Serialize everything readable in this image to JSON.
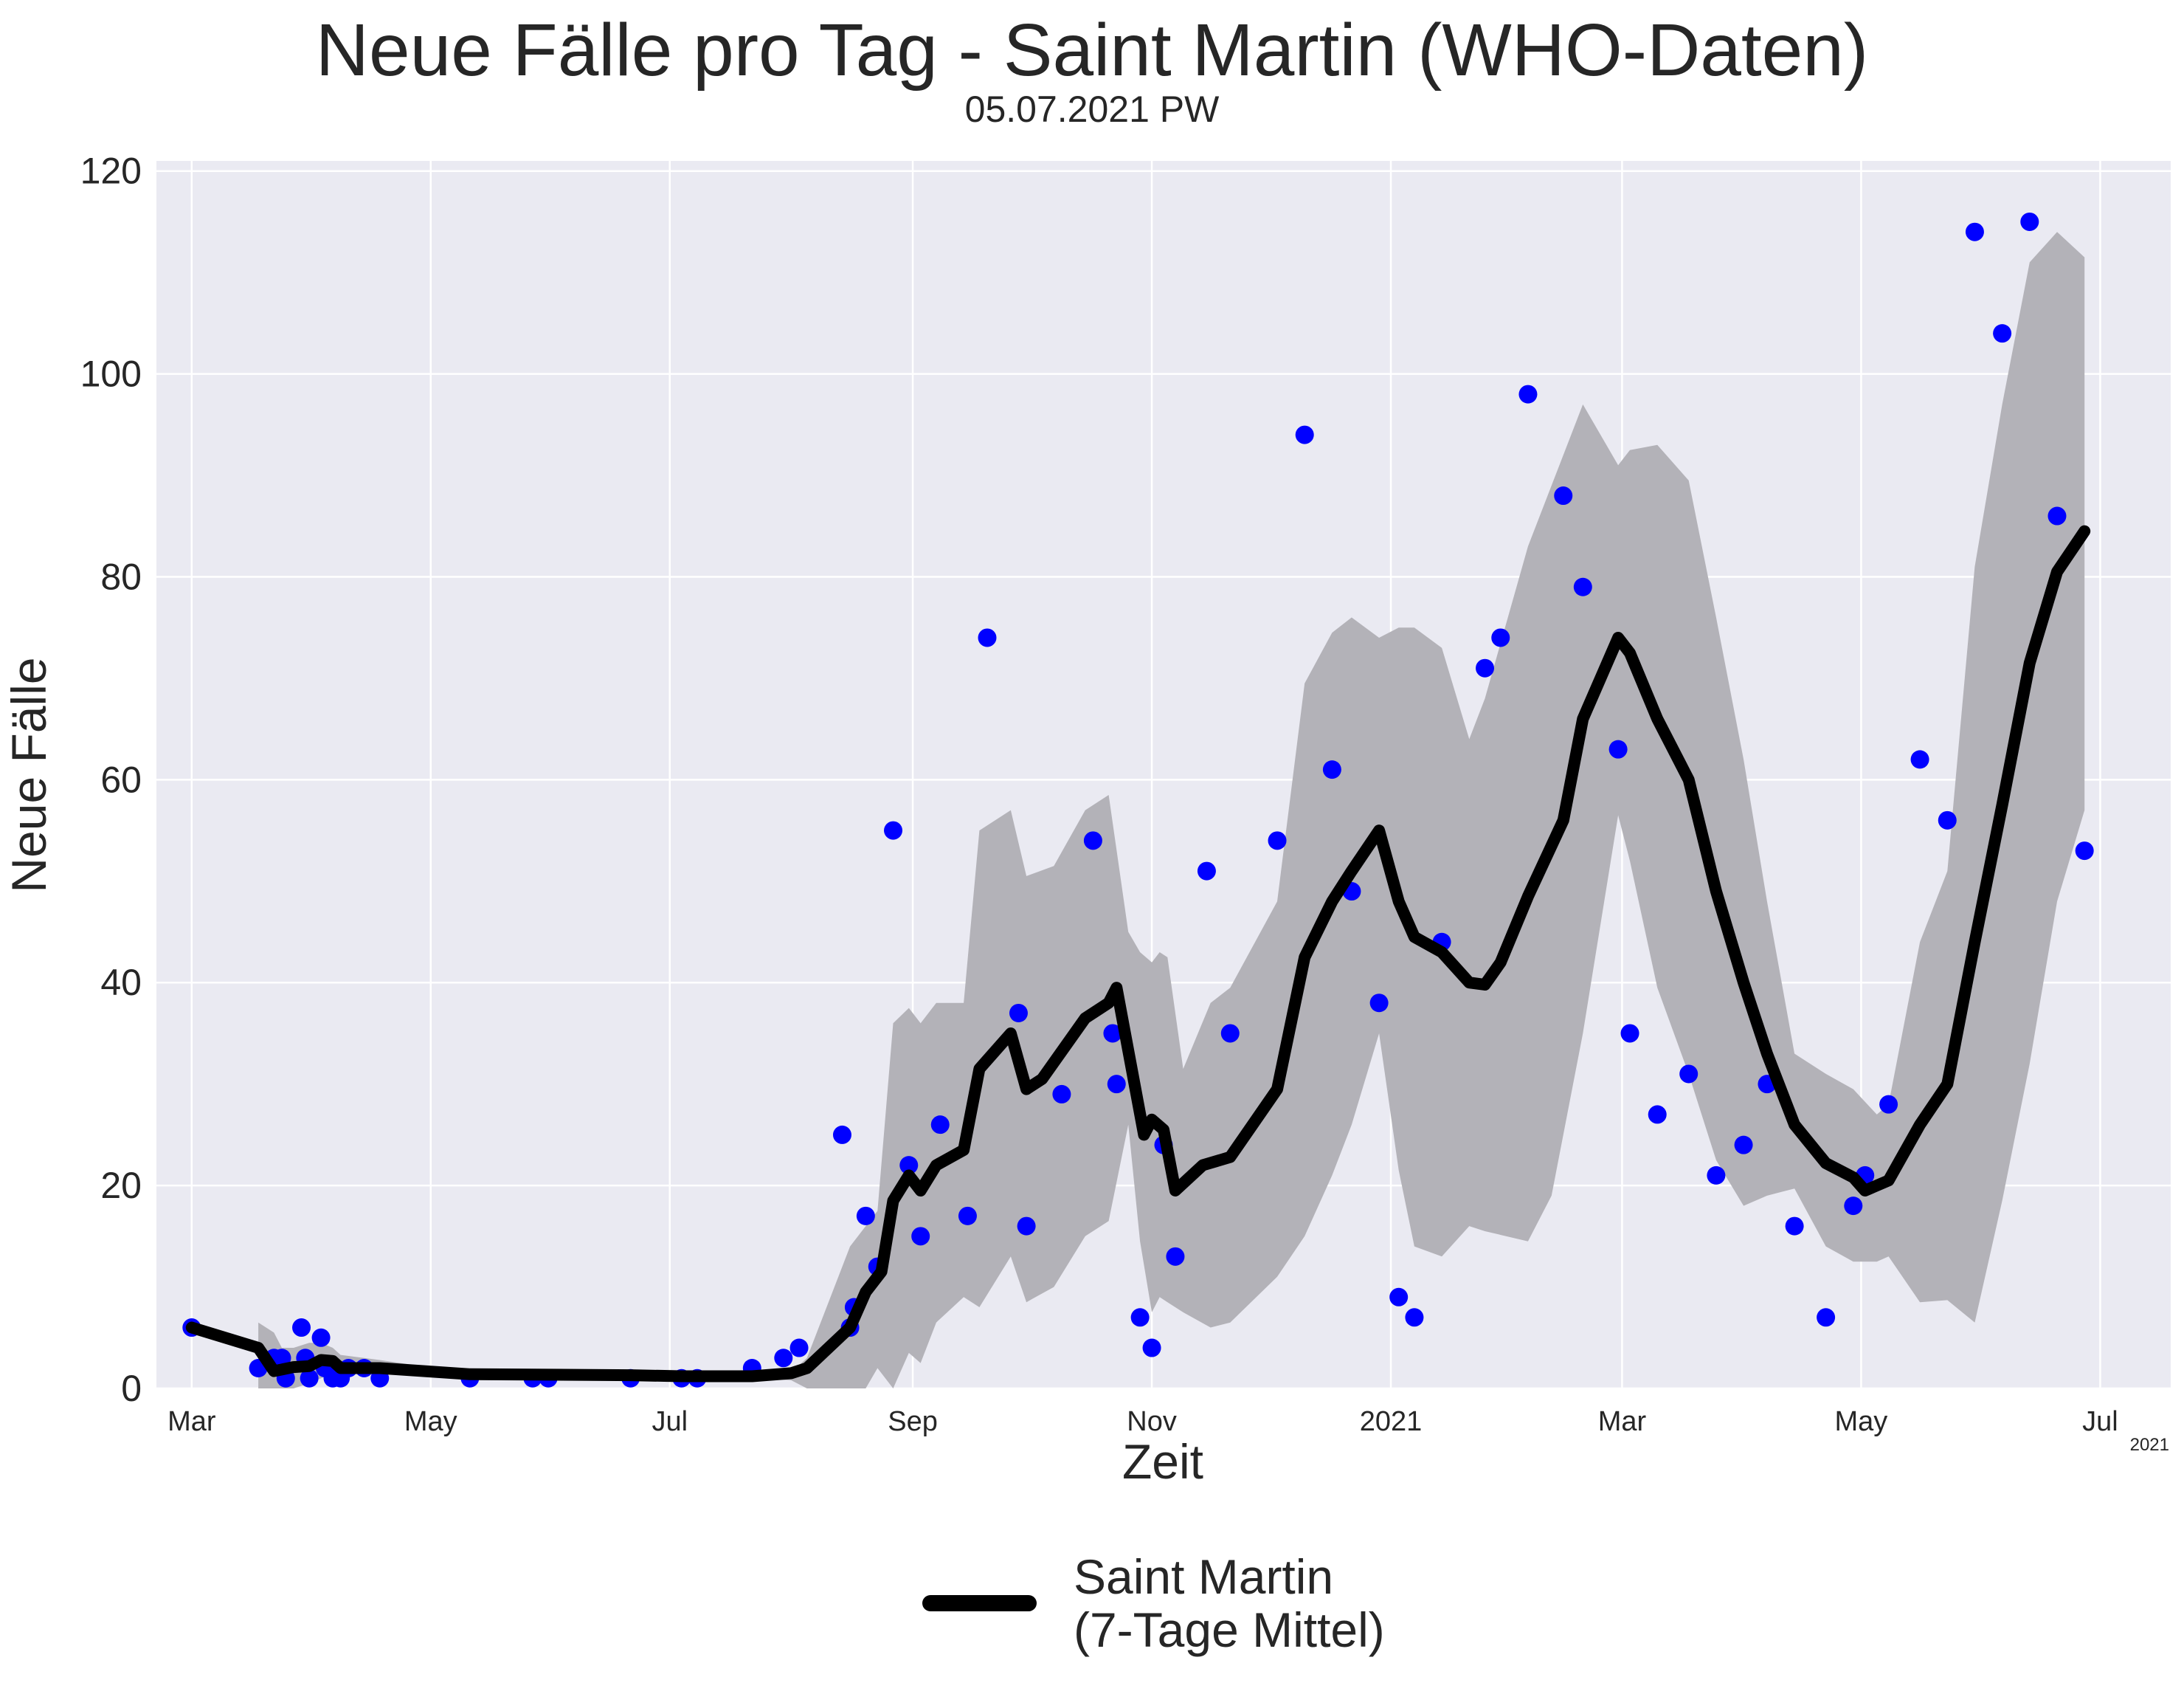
{
  "chart_data": {
    "type": "line",
    "title": "Neue Fälle pro Tag - Saint Martin (WHO-Daten)",
    "subtitle": "05.07.2021 PW",
    "xlabel": "Zeit",
    "ylabel": "Neue Fälle",
    "x_axis": {
      "range": [
        "2020-02-21",
        "2021-07-19"
      ],
      "tick_labels": [
        {
          "date": "2020-03-01",
          "label": "Mar"
        },
        {
          "date": "2020-05-01",
          "label": "May"
        },
        {
          "date": "2020-07-01",
          "label": "Jul"
        },
        {
          "date": "2020-09-01",
          "label": "Sep"
        },
        {
          "date": "2020-11-01",
          "label": "Nov"
        },
        {
          "date": "2021-01-01",
          "label": "2021"
        },
        {
          "date": "2021-03-01",
          "label": "Mar"
        },
        {
          "date": "2021-05-01",
          "label": "May"
        },
        {
          "date": "2021-07-01",
          "label": "Jul"
        }
      ],
      "offset_label": "2021"
    },
    "y_axis": {
      "range": [
        0,
        121
      ],
      "ticks": [
        0,
        20,
        40,
        60,
        80,
        100,
        120
      ]
    },
    "grid": true,
    "legend": {
      "placement": "bottom-center",
      "entries": [
        "Saint Martin",
        "(7-Tage Mittel)"
      ]
    },
    "colors": {
      "points": "#0000ff",
      "line": "#000000",
      "band": "#b3b2b8",
      "background": "#eaeaf2",
      "grid": "#ffffff"
    },
    "series": [
      {
        "kind": "scatter",
        "points": [
          [
            "2020-03-01",
            6
          ],
          [
            "2020-03-18",
            2
          ],
          [
            "2020-03-22",
            3
          ],
          [
            "2020-03-24",
            3
          ],
          [
            "2020-03-25",
            1
          ],
          [
            "2020-03-29",
            6
          ],
          [
            "2020-03-30",
            3
          ],
          [
            "2020-03-31",
            1
          ],
          [
            "2020-04-03",
            5
          ],
          [
            "2020-04-04",
            2
          ],
          [
            "2020-04-06",
            1
          ],
          [
            "2020-04-08",
            1
          ],
          [
            "2020-04-10",
            2
          ],
          [
            "2020-04-14",
            2
          ],
          [
            "2020-04-18",
            1
          ],
          [
            "2020-05-11",
            1
          ],
          [
            "2020-05-27",
            1
          ],
          [
            "2020-05-31",
            1
          ],
          [
            "2020-06-21",
            1
          ],
          [
            "2020-07-04",
            1
          ],
          [
            "2020-07-08",
            1
          ],
          [
            "2020-07-22",
            2
          ],
          [
            "2020-07-30",
            3
          ],
          [
            "2020-08-03",
            4
          ],
          [
            "2020-08-14",
            25
          ],
          [
            "2020-08-16",
            6
          ],
          [
            "2020-08-17",
            8
          ],
          [
            "2020-08-20",
            17
          ],
          [
            "2020-08-23",
            12
          ],
          [
            "2020-08-27",
            55
          ],
          [
            "2020-08-31",
            22
          ],
          [
            "2020-09-03",
            15
          ],
          [
            "2020-09-08",
            26
          ],
          [
            "2020-09-15",
            17
          ],
          [
            "2020-09-20",
            74
          ],
          [
            "2020-09-28",
            37
          ],
          [
            "2020-09-30",
            16
          ],
          [
            "2020-10-09",
            29
          ],
          [
            "2020-10-17",
            54
          ],
          [
            "2020-10-22",
            35
          ],
          [
            "2020-10-23",
            30
          ],
          [
            "2020-10-29",
            7
          ],
          [
            "2020-11-01",
            4
          ],
          [
            "2020-11-04",
            24
          ],
          [
            "2020-11-07",
            13
          ],
          [
            "2020-11-15",
            51
          ],
          [
            "2020-11-21",
            35
          ],
          [
            "2020-12-03",
            54
          ],
          [
            "2020-12-10",
            94
          ],
          [
            "2020-12-17",
            61
          ],
          [
            "2020-12-22",
            49
          ],
          [
            "2020-12-29",
            38
          ],
          [
            "2021-01-03",
            9
          ],
          [
            "2021-01-07",
            7
          ],
          [
            "2021-01-14",
            44
          ],
          [
            "2021-01-25",
            71
          ],
          [
            "2021-01-29",
            74
          ],
          [
            "2021-02-05",
            98
          ],
          [
            "2021-02-14",
            88
          ],
          [
            "2021-02-19",
            79
          ],
          [
            "2021-02-28",
            63
          ],
          [
            "2021-03-03",
            35
          ],
          [
            "2021-03-10",
            27
          ],
          [
            "2021-03-18",
            31
          ],
          [
            "2021-03-25",
            21
          ],
          [
            "2021-04-01",
            24
          ],
          [
            "2021-04-07",
            30
          ],
          [
            "2021-04-14",
            16
          ],
          [
            "2021-04-22",
            7
          ],
          [
            "2021-04-29",
            18
          ],
          [
            "2021-05-02",
            21
          ],
          [
            "2021-05-08",
            28
          ],
          [
            "2021-05-16",
            62
          ],
          [
            "2021-05-23",
            56
          ],
          [
            "2021-05-30",
            114
          ],
          [
            "2021-06-06",
            104
          ],
          [
            "2021-06-13",
            115
          ],
          [
            "2021-06-20",
            86
          ],
          [
            "2021-06-27",
            53
          ]
        ]
      },
      {
        "kind": "line",
        "name": "Saint Martin",
        "points": [
          [
            "2020-03-01",
            6
          ],
          [
            "2020-03-18",
            4
          ],
          [
            "2020-03-22",
            1.7
          ],
          [
            "2020-03-27",
            2.1
          ],
          [
            "2020-03-31",
            2.2
          ],
          [
            "2020-04-03",
            2.8
          ],
          [
            "2020-04-06",
            2.7
          ],
          [
            "2020-04-08",
            2
          ],
          [
            "2020-04-18",
            2
          ],
          [
            "2020-05-11",
            1.4
          ],
          [
            "2020-06-21",
            1.3
          ],
          [
            "2020-07-04",
            1.2
          ],
          [
            "2020-07-22",
            1.2
          ],
          [
            "2020-08-01",
            1.5
          ],
          [
            "2020-08-05",
            2
          ],
          [
            "2020-08-16",
            6
          ],
          [
            "2020-08-20",
            9.5
          ],
          [
            "2020-08-24",
            11.5
          ],
          [
            "2020-08-27",
            18.5
          ],
          [
            "2020-08-31",
            21
          ],
          [
            "2020-09-03",
            19.5
          ],
          [
            "2020-09-07",
            22
          ],
          [
            "2020-09-14",
            23.5
          ],
          [
            "2020-09-18",
            31.5
          ],
          [
            "2020-09-26",
            35
          ],
          [
            "2020-09-30",
            29.5
          ],
          [
            "2020-10-04",
            30.5
          ],
          [
            "2020-10-15",
            36.5
          ],
          [
            "2020-10-21",
            38
          ],
          [
            "2020-10-23",
            39.5
          ],
          [
            "2020-10-30",
            25
          ],
          [
            "2020-11-01",
            26.5
          ],
          [
            "2020-11-04",
            25.5
          ],
          [
            "2020-11-07",
            19.5
          ],
          [
            "2020-11-14",
            22
          ],
          [
            "2020-11-21",
            22.8
          ],
          [
            "2020-12-03",
            29.5
          ],
          [
            "2020-12-10",
            42.5
          ],
          [
            "2020-12-17",
            48
          ],
          [
            "2020-12-22",
            51
          ],
          [
            "2020-12-29",
            55
          ],
          [
            "2021-01-03",
            48
          ],
          [
            "2021-01-07",
            44.5
          ],
          [
            "2021-01-14",
            43
          ],
          [
            "2021-01-21",
            40
          ],
          [
            "2021-01-25",
            39.8
          ],
          [
            "2021-01-29",
            42
          ],
          [
            "2021-02-05",
            48.5
          ],
          [
            "2021-02-14",
            56
          ],
          [
            "2021-02-19",
            66
          ],
          [
            "2021-02-28",
            74
          ],
          [
            "2021-03-03",
            72.5
          ],
          [
            "2021-03-10",
            66
          ],
          [
            "2021-03-18",
            60
          ],
          [
            "2021-03-25",
            49
          ],
          [
            "2021-04-01",
            40
          ],
          [
            "2021-04-07",
            33
          ],
          [
            "2021-04-14",
            26
          ],
          [
            "2021-04-22",
            22.2
          ],
          [
            "2021-04-29",
            20.8
          ],
          [
            "2021-05-02",
            19.5
          ],
          [
            "2021-05-08",
            20.5
          ],
          [
            "2021-05-16",
            26
          ],
          [
            "2021-05-23",
            30
          ],
          [
            "2021-05-30",
            44
          ],
          [
            "2021-06-06",
            57.5
          ],
          [
            "2021-06-13",
            71.5
          ],
          [
            "2021-06-20",
            80.5
          ],
          [
            "2021-06-27",
            84.5
          ]
        ]
      },
      {
        "kind": "band",
        "points": [
          [
            "2020-03-18",
            0,
            6.5
          ],
          [
            "2020-03-22",
            0,
            5.5
          ],
          [
            "2020-03-24",
            0,
            4
          ],
          [
            "2020-03-27",
            0,
            4
          ],
          [
            "2020-03-31",
            0.5,
            4.5
          ],
          [
            "2020-04-03",
            1,
            4.5
          ],
          [
            "2020-04-06",
            1.5,
            4
          ],
          [
            "2020-04-08",
            1.3,
            3.3
          ],
          [
            "2020-04-14",
            1.5,
            3
          ],
          [
            "2020-04-18",
            1.5,
            2.8
          ],
          [
            "2020-05-11",
            1.3,
            1.5
          ],
          [
            "2020-06-21",
            1,
            1.5
          ],
          [
            "2020-07-04",
            1,
            1.4
          ],
          [
            "2020-07-22",
            1,
            1.3
          ],
          [
            "2020-08-01",
            0.8,
            1.6
          ],
          [
            "2020-08-05",
            0,
            3
          ],
          [
            "2020-08-16",
            0,
            14
          ],
          [
            "2020-08-20",
            0,
            16
          ],
          [
            "2020-08-23",
            2,
            17.5
          ],
          [
            "2020-08-27",
            0,
            36
          ],
          [
            "2020-08-31",
            3.5,
            37.5
          ],
          [
            "2020-09-03",
            2.5,
            36
          ],
          [
            "2020-09-07",
            6.5,
            38
          ],
          [
            "2020-09-14",
            9,
            38
          ],
          [
            "2020-09-18",
            8,
            55
          ],
          [
            "2020-09-26",
            13,
            57
          ],
          [
            "2020-09-30",
            8.5,
            50.5
          ],
          [
            "2020-10-07",
            10,
            51.5
          ],
          [
            "2020-10-15",
            15,
            57
          ],
          [
            "2020-10-21",
            16.5,
            58.5
          ],
          [
            "2020-10-26",
            26,
            45
          ],
          [
            "2020-10-29",
            14.5,
            43
          ],
          [
            "2020-11-01",
            7.5,
            42
          ],
          [
            "2020-11-03",
            9,
            43
          ],
          [
            "2020-11-05",
            8.5,
            42.5
          ],
          [
            "2020-11-09",
            7.5,
            31.5
          ],
          [
            "2020-11-16",
            6,
            38
          ],
          [
            "2020-11-21",
            6.5,
            39.5
          ],
          [
            "2020-12-03",
            11,
            48
          ],
          [
            "2020-12-10",
            15,
            69.5
          ],
          [
            "2020-12-17",
            21,
            74.5
          ],
          [
            "2020-12-22",
            26,
            76
          ],
          [
            "2020-12-29",
            35,
            74
          ],
          [
            "2021-01-03",
            21.5,
            75
          ],
          [
            "2021-01-07",
            14,
            75
          ],
          [
            "2021-01-14",
            13,
            73
          ],
          [
            "2021-01-21",
            16,
            64
          ],
          [
            "2021-01-25",
            15.5,
            68
          ],
          [
            "2021-02-05",
            14.5,
            83
          ],
          [
            "2021-02-11",
            19,
            89
          ],
          [
            "2021-02-19",
            35,
            97
          ],
          [
            "2021-02-28",
            56.5,
            91
          ],
          [
            "2021-03-03",
            52,
            92.5
          ],
          [
            "2021-03-10",
            39.5,
            93
          ],
          [
            "2021-03-18",
            31,
            89.5
          ],
          [
            "2021-03-25",
            22.5,
            76
          ],
          [
            "2021-04-01",
            18,
            62
          ],
          [
            "2021-04-07",
            19,
            48
          ],
          [
            "2021-04-14",
            19.7,
            33
          ],
          [
            "2021-04-22",
            14,
            31
          ],
          [
            "2021-04-29",
            12.5,
            29.5
          ],
          [
            "2021-05-05",
            12.5,
            27
          ],
          [
            "2021-05-08",
            13,
            28
          ],
          [
            "2021-05-16",
            8.5,
            44
          ],
          [
            "2021-05-23",
            8.7,
            51
          ],
          [
            "2021-05-30",
            6.5,
            81
          ],
          [
            "2021-06-06",
            18.5,
            97
          ],
          [
            "2021-06-13",
            32,
            111
          ],
          [
            "2021-06-20",
            48,
            114
          ],
          [
            "2021-06-27",
            57,
            111.5
          ]
        ]
      }
    ]
  }
}
